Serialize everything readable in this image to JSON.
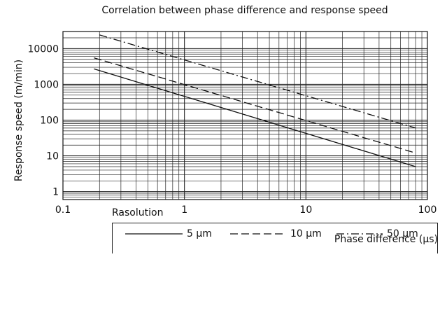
{
  "chart_data": {
    "type": "line",
    "title": "Correlation between phase difference and response speed",
    "xlabel": "Phase difference (µs)",
    "ylabel": "Response speed (m/min)",
    "x_scale": "log",
    "y_scale": "log",
    "xlim": [
      0.1,
      100
    ],
    "ylim": [
      0.6,
      30000
    ],
    "x_ticks": [
      {
        "value": 0.1,
        "label": "0.1"
      },
      {
        "value": 1,
        "label": "1"
      },
      {
        "value": 10,
        "label": "10"
      },
      {
        "value": 100,
        "label": "100"
      }
    ],
    "y_ticks": [
      {
        "value": 1,
        "label": "1"
      },
      {
        "value": 10,
        "label": "10"
      },
      {
        "value": 100,
        "label": "100"
      },
      {
        "value": 1000,
        "label": "1000"
      },
      {
        "value": 10000,
        "label": "10000"
      }
    ],
    "grid": true,
    "legend_title": "Rasolution",
    "legend_position": "bottom",
    "series": [
      {
        "name": "5 µm",
        "dash": "solid",
        "x": [
          0.18,
          80
        ],
        "y": [
          2700,
          5
        ]
      },
      {
        "name": "10 µm",
        "dash": "dashed",
        "x": [
          0.18,
          80
        ],
        "y": [
          5500,
          12
        ]
      },
      {
        "name": "50 µm",
        "dash": "dashdot",
        "x": [
          0.2,
          80
        ],
        "y": [
          24000,
          60
        ]
      }
    ]
  }
}
